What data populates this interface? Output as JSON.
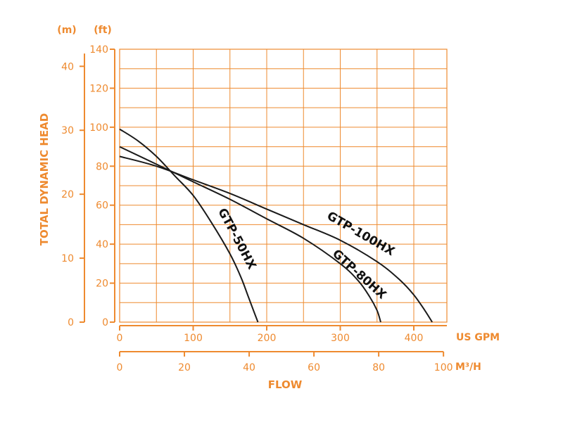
{
  "chart_data": {
    "type": "line",
    "colors": {
      "accent": "#ee8a2f",
      "curve": "#1a1a1a",
      "background": "#ffffff"
    },
    "ylabel": "TOTAL DYNAMIC HEAD",
    "xlabel": "FLOW",
    "y_ft_unit": "(ft)",
    "y_m_unit": "(m)",
    "x_gpm_unit": "US GPM",
    "x_m3h_unit": "M³/H",
    "xlim_gpm": [
      0,
      445
    ],
    "ylim_ft": [
      0,
      140
    ],
    "y_ft_ticks": [
      "0",
      "20",
      "40",
      "60",
      "80",
      "100",
      "120",
      "140"
    ],
    "y_m_ticks": [
      "0",
      "10",
      "20",
      "30",
      "40"
    ],
    "x_gpm_ticks": [
      "0",
      "100",
      "200",
      "300",
      "400"
    ],
    "x_m3h_ticks": [
      "0",
      "20",
      "40",
      "60",
      "80",
      "100"
    ],
    "grid": true,
    "series": [
      {
        "name": "GTP-50HX",
        "x": [
          0,
          25,
          50,
          75,
          100,
          125,
          150,
          165,
          175,
          183,
          188
        ],
        "y": [
          99,
          93,
          85,
          75,
          65,
          51,
          35,
          23,
          13,
          5,
          0
        ]
      },
      {
        "name": "GTP-80HX",
        "x": [
          0,
          50,
          100,
          150,
          200,
          250,
          300,
          325,
          340,
          350,
          355
        ],
        "y": [
          90,
          81,
          72,
          63,
          53,
          43,
          30,
          21,
          13,
          6,
          0
        ]
      },
      {
        "name": "GTP-100HX",
        "x": [
          0,
          50,
          100,
          150,
          200,
          250,
          300,
          350,
          380,
          400,
          415,
          425
        ],
        "y": [
          85,
          80,
          73,
          66,
          58,
          50,
          42,
          31,
          22,
          14,
          6,
          0
        ]
      }
    ]
  }
}
